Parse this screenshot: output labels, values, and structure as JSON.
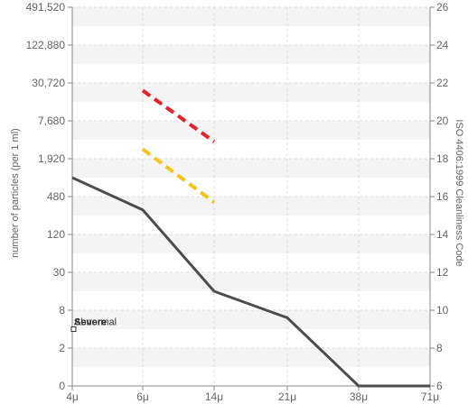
{
  "chart_data": {
    "type": "line",
    "x_categories": [
      "4μ",
      "6μ",
      "14μ",
      "21μ",
      "38μ",
      "71μ"
    ],
    "ylabel_left": "number of particles (per 1 ml)",
    "ylabel_right": "ISO 4406:1999 Cleanliness Code",
    "left_ticks": [
      "0",
      "2",
      "8",
      "30",
      "120",
      "480",
      "1,920",
      "7,680",
      "30,720",
      "122,880",
      "491,520"
    ],
    "right_ticks": [
      "6",
      "8",
      "10",
      "12",
      "14",
      "16",
      "18",
      "20",
      "22",
      "24",
      "26"
    ],
    "ylim_code": [
      6,
      26
    ],
    "grid": true,
    "series": [
      {
        "x": [
          "4μ",
          "6μ",
          "14μ",
          "21μ",
          "38μ",
          "71μ"
        ],
        "code": [
          17.0,
          15.3,
          11.0,
          9.6,
          6.0,
          6.0
        ],
        "color": "#4d4d4d",
        "style": "solid"
      },
      {
        "x": [
          "6μ",
          "14μ"
        ],
        "code": [
          21.6,
          18.9
        ],
        "color": "#e8202a",
        "style": "dashed"
      },
      {
        "x": [
          "6μ",
          "14μ"
        ],
        "code": [
          18.5,
          15.7
        ],
        "color": "#f5c518",
        "style": "dashed"
      }
    ],
    "annotations": [
      {
        "text": "Severe",
        "x": "4μ",
        "code": 9.4
      },
      {
        "text": "Abnormal",
        "x": "4μ",
        "code": 9.4
      }
    ],
    "marker": {
      "x": "4μ",
      "code": 9.0
    }
  }
}
